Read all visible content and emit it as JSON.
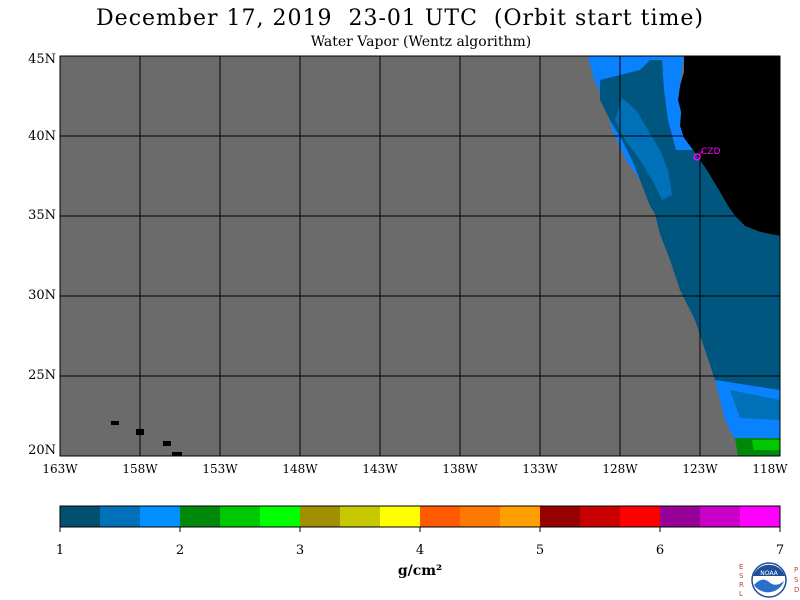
{
  "header": {
    "title": "December 17, 2019  23-01 UTC  (Orbit start time)",
    "subtitle": "Water Vapor (Wentz algorithm)"
  },
  "map": {
    "lat_labels": [
      "45N",
      "40N",
      "35N",
      "30N",
      "25N",
      "20N"
    ],
    "lon_labels": [
      "163W",
      "158W",
      "153W",
      "148W",
      "143W",
      "138W",
      "133W",
      "128W",
      "123W",
      "118W"
    ],
    "station": "CZD",
    "colors": {
      "nodata": "#6b6b6b",
      "land": "#000000",
      "grid": "#000000",
      "station": "#ff00ff"
    }
  },
  "colorbar": {
    "labels": [
      "1",
      "2",
      "3",
      "4",
      "5",
      "6",
      "7"
    ],
    "unit": "g/cm²",
    "colors": [
      "#00506e",
      "#0070b8",
      "#0090ff",
      "#00880a",
      "#00c800",
      "#00ff00",
      "#a09000",
      "#c8c800",
      "#ffff00",
      "#ff5a00",
      "#ff7800",
      "#ffa000",
      "#960000",
      "#c80000",
      "#ff0000",
      "#960096",
      "#c800c8",
      "#ff00ff"
    ]
  },
  "logo": {
    "left_letters": [
      "E",
      "S",
      "R",
      "L"
    ],
    "right_letters": [
      "P",
      "S",
      "D"
    ],
    "text": "NOAA"
  }
}
